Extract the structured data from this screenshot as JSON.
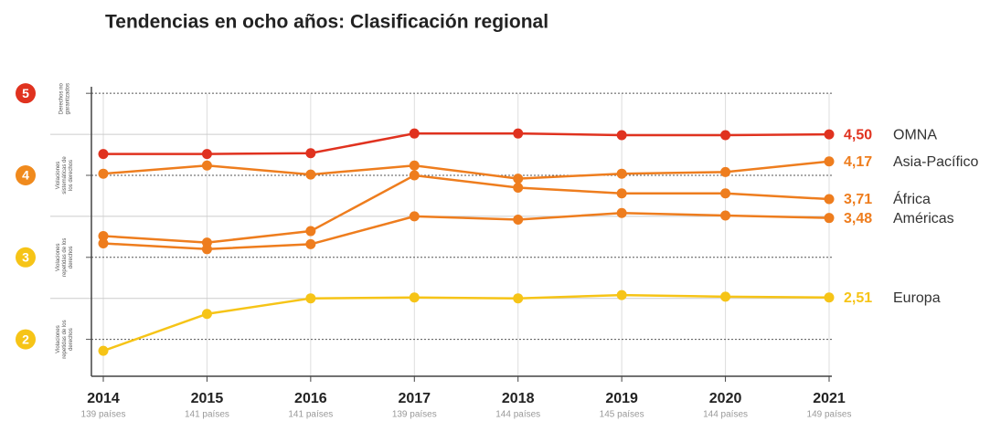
{
  "chart_data": {
    "type": "line",
    "title": "Tendencias en ocho años: Clasificación regional",
    "categories": [
      "2014",
      "2015",
      "2016",
      "2017",
      "2018",
      "2019",
      "2020",
      "2021"
    ],
    "sublabels": [
      "139 países",
      "141 países",
      "141 países",
      "139 países",
      "144 países",
      "145 países",
      "144 países",
      "149 países"
    ],
    "series": [
      {
        "name": "OMNA",
        "color": "#e0321f",
        "values": [
          4.26,
          4.26,
          4.27,
          4.51,
          4.51,
          4.49,
          4.49,
          4.5
        ],
        "end_label": "4,50"
      },
      {
        "name": "Asia-Pacífico",
        "color": "#ee7d1e",
        "values": [
          4.02,
          4.12,
          4.01,
          4.12,
          3.96,
          4.02,
          4.04,
          4.17
        ],
        "end_label": "4,17"
      },
      {
        "name": "África",
        "color": "#ee7d1e",
        "values": [
          3.26,
          3.18,
          3.32,
          4.0,
          3.85,
          3.78,
          3.78,
          3.71
        ],
        "end_label": "3,71"
      },
      {
        "name": "Américas",
        "color": "#ee7d1e",
        "values": [
          3.17,
          3.1,
          3.16,
          3.5,
          3.46,
          3.54,
          3.51,
          3.48
        ],
        "end_label": "3,48"
      },
      {
        "name": "Europa",
        "color": "#f6c417",
        "values": [
          1.86,
          2.31,
          2.5,
          2.51,
          2.5,
          2.54,
          2.52,
          2.51
        ],
        "end_label": "2,51"
      }
    ],
    "ylim": [
      1.55,
      5.08
    ],
    "yticks": [
      2,
      3,
      4,
      5
    ],
    "ytick_colors": [
      "#f6c417",
      "#f6c417",
      "#f08a1d",
      "#e0321f"
    ],
    "bands": [
      "Violaciones repetidas de los derechos",
      "Violaciones repetidas de los derechos",
      "Violaciones sistemáticas de los derechos",
      "Derechos no garantizados"
    ],
    "grid": true
  }
}
